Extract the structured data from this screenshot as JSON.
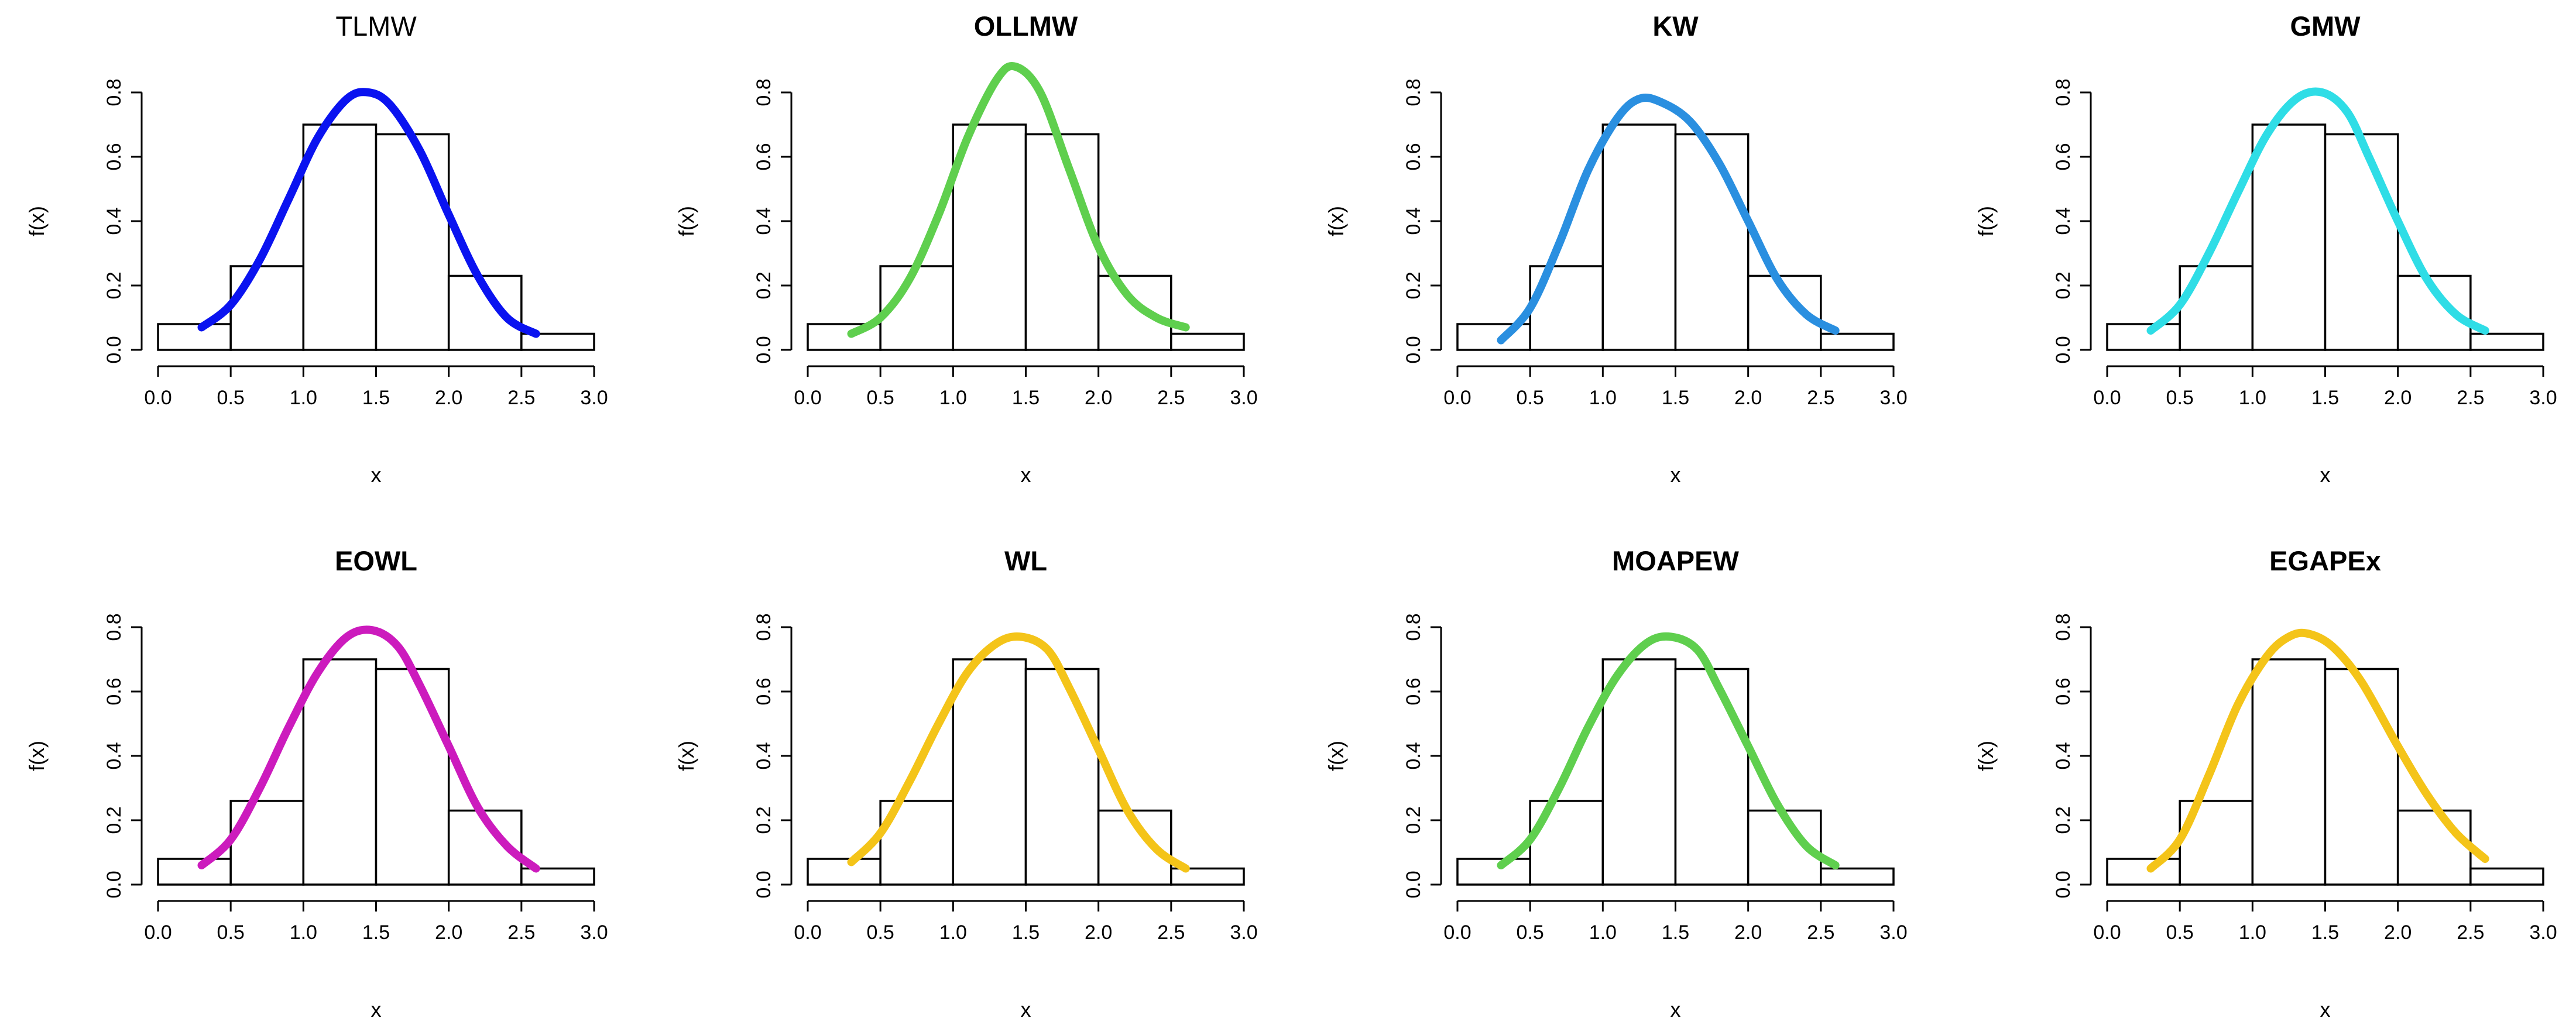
{
  "figure": "Histogram of x with eight fitted density curves",
  "chart_data": [
    {
      "type": "histogram",
      "title": "TLMW",
      "title_bold": false,
      "xlabel": "x",
      "ylabel": "f(x)",
      "xlim": [
        0,
        3
      ],
      "ylim": [
        0,
        0.8
      ],
      "xticks": [
        "0.0",
        "0.5",
        "1.0",
        "1.5",
        "2.0",
        "2.5",
        "3.0"
      ],
      "yticks": [
        "0.0",
        "0.2",
        "0.4",
        "0.6",
        "0.8"
      ],
      "bins": [
        [
          0,
          0.5
        ],
        [
          0.5,
          1.0
        ],
        [
          1.0,
          1.5
        ],
        [
          1.5,
          2.0
        ],
        [
          2.0,
          2.5
        ],
        [
          2.5,
          3.0
        ]
      ],
      "density": [
        0.08,
        0.26,
        0.7,
        0.67,
        0.23,
        0.05
      ],
      "curve": {
        "color": "#0a13f0",
        "x": [
          0.3,
          0.5,
          0.7,
          0.9,
          1.1,
          1.3,
          1.45,
          1.6,
          1.8,
          2.0,
          2.2,
          2.4,
          2.6
        ],
        "y": [
          0.07,
          0.14,
          0.28,
          0.47,
          0.66,
          0.78,
          0.8,
          0.76,
          0.62,
          0.42,
          0.23,
          0.1,
          0.05
        ]
      }
    },
    {
      "type": "histogram",
      "title": "OLLMW",
      "title_bold": true,
      "xlabel": "x",
      "ylabel": "f(x)",
      "xlim": [
        0,
        3
      ],
      "ylim": [
        0,
        0.8
      ],
      "xticks": [
        "0.0",
        "0.5",
        "1.0",
        "1.5",
        "2.0",
        "2.5",
        "3.0"
      ],
      "yticks": [
        "0.0",
        "0.2",
        "0.4",
        "0.6",
        "0.8"
      ],
      "bins": [
        [
          0,
          0.5
        ],
        [
          0.5,
          1.0
        ],
        [
          1.0,
          1.5
        ],
        [
          1.5,
          2.0
        ],
        [
          2.0,
          2.5
        ],
        [
          2.5,
          3.0
        ]
      ],
      "density": [
        0.08,
        0.26,
        0.7,
        0.67,
        0.23,
        0.05
      ],
      "curve": {
        "color": "#5fcf4e",
        "x": [
          0.3,
          0.5,
          0.7,
          0.9,
          1.1,
          1.3,
          1.43,
          1.6,
          1.8,
          2.0,
          2.2,
          2.4,
          2.6
        ],
        "y": [
          0.05,
          0.1,
          0.22,
          0.42,
          0.66,
          0.84,
          0.88,
          0.8,
          0.56,
          0.32,
          0.17,
          0.1,
          0.07
        ]
      }
    },
    {
      "type": "histogram",
      "title": "KW",
      "title_bold": true,
      "xlabel": "x",
      "ylabel": "f(x)",
      "xlim": [
        0,
        3
      ],
      "ylim": [
        0,
        0.8
      ],
      "xticks": [
        "0.0",
        "0.5",
        "1.0",
        "1.5",
        "2.0",
        "2.5",
        "3.0"
      ],
      "yticks": [
        "0.0",
        "0.2",
        "0.4",
        "0.6",
        "0.8"
      ],
      "bins": [
        [
          0,
          0.5
        ],
        [
          0.5,
          1.0
        ],
        [
          1.0,
          1.5
        ],
        [
          1.5,
          2.0
        ],
        [
          2.0,
          2.5
        ],
        [
          2.5,
          3.0
        ]
      ],
      "density": [
        0.08,
        0.26,
        0.7,
        0.67,
        0.23,
        0.05
      ],
      "curve": {
        "color": "#2a8fe0",
        "x": [
          0.3,
          0.5,
          0.7,
          0.9,
          1.1,
          1.25,
          1.4,
          1.6,
          1.8,
          2.0,
          2.2,
          2.4,
          2.6
        ],
        "y": [
          0.03,
          0.13,
          0.33,
          0.56,
          0.72,
          0.78,
          0.77,
          0.71,
          0.58,
          0.4,
          0.22,
          0.11,
          0.06
        ]
      }
    },
    {
      "type": "histogram",
      "title": "GMW",
      "title_bold": true,
      "xlabel": "x",
      "ylabel": "f(x)",
      "xlim": [
        0,
        3
      ],
      "ylim": [
        0,
        0.8
      ],
      "xticks": [
        "0.0",
        "0.5",
        "1.0",
        "1.5",
        "2.0",
        "2.5",
        "3.0"
      ],
      "yticks": [
        "0.0",
        "0.2",
        "0.4",
        "0.6",
        "0.8"
      ],
      "bins": [
        [
          0,
          0.5
        ],
        [
          0.5,
          1.0
        ],
        [
          1.0,
          1.5
        ],
        [
          1.5,
          2.0
        ],
        [
          2.0,
          2.5
        ],
        [
          2.5,
          3.0
        ]
      ],
      "density": [
        0.08,
        0.26,
        0.7,
        0.67,
        0.23,
        0.05
      ],
      "curve": {
        "color": "#2fdde6",
        "x": [
          0.3,
          0.5,
          0.7,
          0.9,
          1.1,
          1.3,
          1.48,
          1.65,
          1.8,
          2.0,
          2.2,
          2.4,
          2.6
        ],
        "y": [
          0.06,
          0.14,
          0.3,
          0.49,
          0.67,
          0.78,
          0.8,
          0.74,
          0.6,
          0.4,
          0.22,
          0.11,
          0.06
        ]
      }
    },
    {
      "type": "histogram",
      "title": "EOWL",
      "title_bold": true,
      "xlabel": "x",
      "ylabel": "f(x)",
      "xlim": [
        0,
        3
      ],
      "ylim": [
        0,
        0.8
      ],
      "xticks": [
        "0.0",
        "0.5",
        "1.0",
        "1.5",
        "2.0",
        "2.5",
        "3.0"
      ],
      "yticks": [
        "0.0",
        "0.2",
        "0.4",
        "0.6",
        "0.8"
      ],
      "bins": [
        [
          0,
          0.5
        ],
        [
          0.5,
          1.0
        ],
        [
          1.0,
          1.5
        ],
        [
          1.5,
          2.0
        ],
        [
          2.0,
          2.5
        ],
        [
          2.5,
          3.0
        ]
      ],
      "density": [
        0.08,
        0.26,
        0.7,
        0.67,
        0.23,
        0.05
      ],
      "curve": {
        "color": "#cc1bbd",
        "x": [
          0.3,
          0.5,
          0.7,
          0.9,
          1.1,
          1.3,
          1.48,
          1.65,
          1.8,
          2.0,
          2.2,
          2.4,
          2.6
        ],
        "y": [
          0.06,
          0.14,
          0.3,
          0.49,
          0.66,
          0.77,
          0.79,
          0.74,
          0.62,
          0.43,
          0.24,
          0.12,
          0.05
        ]
      }
    },
    {
      "type": "histogram",
      "title": "WL",
      "title_bold": true,
      "xlabel": "x",
      "ylabel": "f(x)",
      "xlim": [
        0,
        3
      ],
      "ylim": [
        0,
        0.8
      ],
      "xticks": [
        "0.0",
        "0.5",
        "1.0",
        "1.5",
        "2.0",
        "2.5",
        "3.0"
      ],
      "yticks": [
        "0.0",
        "0.2",
        "0.4",
        "0.6",
        "0.8"
      ],
      "bins": [
        [
          0,
          0.5
        ],
        [
          0.5,
          1.0
        ],
        [
          1.0,
          1.5
        ],
        [
          1.5,
          2.0
        ],
        [
          2.0,
          2.5
        ],
        [
          2.5,
          3.0
        ]
      ],
      "density": [
        0.08,
        0.26,
        0.7,
        0.67,
        0.23,
        0.05
      ],
      "curve": {
        "color": "#f4c419",
        "x": [
          0.3,
          0.5,
          0.7,
          0.9,
          1.1,
          1.3,
          1.47,
          1.65,
          1.8,
          2.0,
          2.2,
          2.4,
          2.6
        ],
        "y": [
          0.07,
          0.16,
          0.32,
          0.5,
          0.66,
          0.75,
          0.77,
          0.73,
          0.61,
          0.42,
          0.23,
          0.11,
          0.05
        ]
      }
    },
    {
      "type": "histogram",
      "title": "MOAPEW",
      "title_bold": true,
      "xlabel": "x",
      "ylabel": "f(x)",
      "xlim": [
        0,
        3
      ],
      "ylim": [
        0,
        0.8
      ],
      "xticks": [
        "0.0",
        "0.5",
        "1.0",
        "1.5",
        "2.0",
        "2.5",
        "3.0"
      ],
      "yticks": [
        "0.0",
        "0.2",
        "0.4",
        "0.6",
        "0.8"
      ],
      "bins": [
        [
          0,
          0.5
        ],
        [
          0.5,
          1.0
        ],
        [
          1.0,
          1.5
        ],
        [
          1.5,
          2.0
        ],
        [
          2.0,
          2.5
        ],
        [
          2.5,
          3.0
        ]
      ],
      "density": [
        0.08,
        0.26,
        0.7,
        0.67,
        0.23,
        0.05
      ],
      "curve": {
        "color": "#5fcf4e",
        "x": [
          0.3,
          0.5,
          0.7,
          0.9,
          1.1,
          1.3,
          1.47,
          1.65,
          1.8,
          2.0,
          2.2,
          2.4,
          2.6
        ],
        "y": [
          0.06,
          0.14,
          0.3,
          0.49,
          0.65,
          0.75,
          0.77,
          0.73,
          0.61,
          0.43,
          0.25,
          0.12,
          0.06
        ]
      }
    },
    {
      "type": "histogram",
      "title": "EGAPEx",
      "title_bold": true,
      "xlabel": "x",
      "ylabel": "f(x)",
      "xlim": [
        0,
        3
      ],
      "ylim": [
        0,
        0.8
      ],
      "xticks": [
        "0.0",
        "0.5",
        "1.0",
        "1.5",
        "2.0",
        "2.5",
        "3.0"
      ],
      "yticks": [
        "0.0",
        "0.2",
        "0.4",
        "0.6",
        "0.8"
      ],
      "bins": [
        [
          0,
          0.5
        ],
        [
          0.5,
          1.0
        ],
        [
          1.0,
          1.5
        ],
        [
          1.5,
          2.0
        ],
        [
          2.0,
          2.5
        ],
        [
          2.5,
          3.0
        ]
      ],
      "density": [
        0.08,
        0.26,
        0.7,
        0.67,
        0.23,
        0.05
      ],
      "curve": {
        "color": "#f4c419",
        "x": [
          0.3,
          0.5,
          0.7,
          0.9,
          1.1,
          1.25,
          1.38,
          1.55,
          1.75,
          2.0,
          2.2,
          2.4,
          2.6
        ],
        "y": [
          0.05,
          0.14,
          0.34,
          0.56,
          0.71,
          0.77,
          0.78,
          0.74,
          0.63,
          0.43,
          0.28,
          0.16,
          0.08
        ]
      }
    }
  ]
}
